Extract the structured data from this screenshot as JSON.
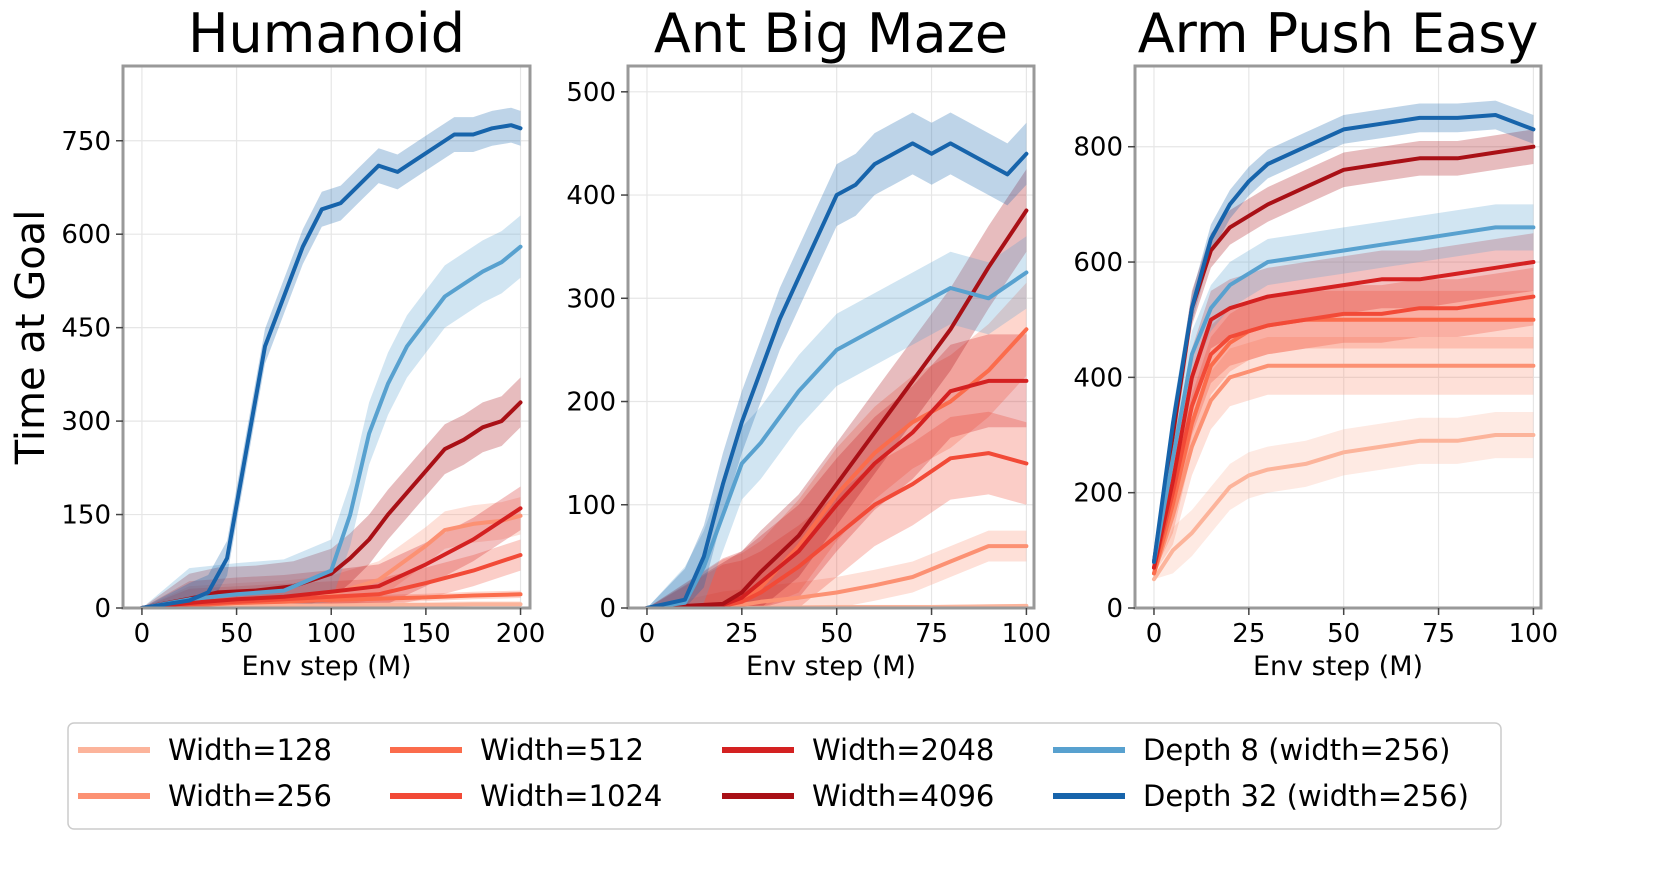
{
  "figure": {
    "ylabel": "Time at Goal",
    "legend_placement": "bottom"
  },
  "series_styles": [
    {
      "name": "Width=128",
      "color": "#fcb49b"
    },
    {
      "name": "Width=256",
      "color": "#fc9173"
    },
    {
      "name": "Width=512",
      "color": "#fb6c4c"
    },
    {
      "name": "Width=1024",
      "color": "#f24a37"
    },
    {
      "name": "Width=2048",
      "color": "#d42121"
    },
    {
      "name": "Width=4096",
      "color": "#a91016"
    },
    {
      "name": "Depth 8 (width=256)",
      "color": "#58a1cf"
    },
    {
      "name": "Depth 32 (width=256)",
      "color": "#1764ab"
    }
  ],
  "chart_data": [
    {
      "type": "line",
      "title": "Humanoid",
      "xlabel": "Env step (M)",
      "ylabel": "Time at Goal",
      "xlim": [
        -10,
        205
      ],
      "ylim": [
        0,
        870
      ],
      "xticks": [
        0,
        50,
        100,
        150,
        200
      ],
      "yticks": [
        0,
        150,
        300,
        450,
        600,
        750
      ],
      "grid": true,
      "series": [
        {
          "name": "Width=128",
          "x": [
            0,
            25,
            50,
            75,
            100,
            125,
            150,
            175,
            200
          ],
          "y": [
            0,
            2,
            3,
            4,
            4,
            5,
            5,
            6,
            6
          ],
          "band": 5
        },
        {
          "name": "Width=256",
          "x": [
            0,
            25,
            50,
            75,
            100,
            125,
            150,
            160,
            175,
            190,
            200
          ],
          "y": [
            0,
            5,
            10,
            14,
            22,
            45,
            100,
            125,
            135,
            140,
            148
          ],
          "band": 30
        },
        {
          "name": "Width=512",
          "x": [
            0,
            25,
            50,
            75,
            100,
            125,
            150,
            175,
            200
          ],
          "y": [
            0,
            4,
            8,
            10,
            13,
            15,
            17,
            20,
            22
          ],
          "band": 6
        },
        {
          "name": "Width=1024",
          "x": [
            0,
            25,
            50,
            75,
            100,
            125,
            150,
            175,
            200
          ],
          "y": [
            0,
            6,
            10,
            14,
            18,
            22,
            40,
            60,
            85
          ],
          "band": 25
        },
        {
          "name": "Width=2048",
          "x": [
            0,
            25,
            50,
            75,
            100,
            125,
            150,
            175,
            200
          ],
          "y": [
            0,
            8,
            14,
            18,
            26,
            35,
            70,
            110,
            160
          ],
          "band": 35
        },
        {
          "name": "Width=4096",
          "x": [
            0,
            25,
            40,
            60,
            80,
            100,
            110,
            120,
            130,
            140,
            150,
            160,
            170,
            180,
            190,
            200
          ],
          "y": [
            0,
            15,
            25,
            28,
            35,
            55,
            80,
            110,
            150,
            185,
            220,
            255,
            270,
            290,
            300,
            330
          ],
          "band": 40
        },
        {
          "name": "Depth 8 (width=256)",
          "x": [
            0,
            25,
            50,
            75,
            100,
            110,
            120,
            130,
            140,
            150,
            160,
            170,
            180,
            190,
            200
          ],
          "y": [
            0,
            14,
            22,
            28,
            60,
            150,
            280,
            360,
            420,
            460,
            500,
            520,
            540,
            555,
            580
          ],
          "band": 50
        },
        {
          "name": "Depth 32 (width=256)",
          "x": [
            0,
            25,
            35,
            45,
            55,
            65,
            75,
            85,
            95,
            105,
            115,
            125,
            135,
            145,
            155,
            165,
            175,
            185,
            195,
            200
          ],
          "y": [
            0,
            12,
            25,
            80,
            250,
            420,
            500,
            580,
            640,
            650,
            680,
            710,
            700,
            720,
            740,
            760,
            760,
            770,
            775,
            770
          ],
          "band": 28
        }
      ]
    },
    {
      "type": "line",
      "title": "Ant Big Maze",
      "xlabel": "Env step (M)",
      "ylabel": "",
      "xlim": [
        -5,
        102
      ],
      "ylim": [
        0,
        525
      ],
      "xticks": [
        0,
        25,
        50,
        75,
        100
      ],
      "yticks": [
        0,
        100,
        200,
        300,
        400,
        500
      ],
      "grid": true,
      "series": [
        {
          "name": "Width=128",
          "x": [
            0,
            25,
            50,
            75,
            100
          ],
          "y": [
            0,
            0,
            1,
            1,
            2
          ],
          "band": 2
        },
        {
          "name": "Width=256",
          "x": [
            0,
            20,
            25,
            30,
            40,
            50,
            60,
            70,
            80,
            90,
            100
          ],
          "y": [
            0,
            1,
            3,
            6,
            10,
            15,
            22,
            30,
            45,
            60,
            60
          ],
          "band": 15
        },
        {
          "name": "Width=512",
          "x": [
            0,
            20,
            25,
            30,
            40,
            50,
            60,
            70,
            80,
            90,
            100
          ],
          "y": [
            0,
            2,
            8,
            20,
            60,
            110,
            150,
            180,
            200,
            230,
            270
          ],
          "band": 45
        },
        {
          "name": "Width=1024",
          "x": [
            0,
            20,
            25,
            30,
            40,
            50,
            60,
            70,
            80,
            90,
            100
          ],
          "y": [
            0,
            2,
            6,
            15,
            40,
            70,
            100,
            120,
            145,
            150,
            140
          ],
          "band": 40
        },
        {
          "name": "Width=2048",
          "x": [
            0,
            20,
            25,
            30,
            40,
            50,
            60,
            70,
            80,
            90,
            100
          ],
          "y": [
            0,
            3,
            10,
            25,
            55,
            100,
            140,
            170,
            210,
            220,
            220
          ],
          "band": 45
        },
        {
          "name": "Width=4096",
          "x": [
            0,
            20,
            25,
            30,
            40,
            50,
            60,
            70,
            80,
            90,
            100
          ],
          "y": [
            0,
            4,
            15,
            35,
            70,
            120,
            170,
            220,
            270,
            330,
            385
          ],
          "band": 40
        },
        {
          "name": "Depth 8 (width=256)",
          "x": [
            0,
            10,
            15,
            20,
            25,
            30,
            40,
            50,
            60,
            70,
            80,
            90,
            100
          ],
          "y": [
            0,
            5,
            40,
            90,
            140,
            160,
            210,
            250,
            270,
            290,
            310,
            300,
            325
          ],
          "band": 35
        },
        {
          "name": "Depth 32 (width=256)",
          "x": [
            0,
            10,
            15,
            20,
            25,
            30,
            35,
            40,
            45,
            50,
            55,
            60,
            65,
            70,
            75,
            80,
            85,
            90,
            95,
            100
          ],
          "y": [
            0,
            8,
            50,
            120,
            180,
            230,
            280,
            320,
            360,
            400,
            410,
            430,
            440,
            450,
            440,
            450,
            440,
            430,
            420,
            440
          ],
          "band": 30
        }
      ]
    },
    {
      "type": "line",
      "title": "Arm Push Easy",
      "xlabel": "Env step (M)",
      "ylabel": "",
      "xlim": [
        -5,
        102
      ],
      "ylim": [
        0,
        940
      ],
      "xticks": [
        0,
        25,
        50,
        75,
        100
      ],
      "yticks": [
        0,
        200,
        400,
        600,
        800
      ],
      "grid": true,
      "series": [
        {
          "name": "Width=128",
          "x": [
            0,
            5,
            10,
            15,
            20,
            25,
            30,
            40,
            50,
            60,
            70,
            80,
            90,
            100
          ],
          "y": [
            50,
            100,
            130,
            170,
            210,
            230,
            240,
            250,
            270,
            280,
            290,
            290,
            300,
            300
          ],
          "band": 40
        },
        {
          "name": "Width=256",
          "x": [
            0,
            5,
            10,
            15,
            20,
            25,
            30,
            40,
            50,
            60,
            70,
            80,
            90,
            100
          ],
          "y": [
            60,
            160,
            280,
            360,
            400,
            410,
            420,
            420,
            420,
            420,
            420,
            420,
            420,
            420
          ],
          "band": 50
        },
        {
          "name": "Width=512",
          "x": [
            0,
            5,
            10,
            15,
            20,
            25,
            30,
            40,
            50,
            60,
            70,
            80,
            90,
            100
          ],
          "y": [
            60,
            180,
            320,
            420,
            460,
            480,
            490,
            500,
            500,
            500,
            500,
            500,
            500,
            500
          ],
          "band": 50
        },
        {
          "name": "Width=1024",
          "x": [
            0,
            5,
            10,
            15,
            20,
            25,
            30,
            40,
            50,
            60,
            70,
            80,
            90,
            100
          ],
          "y": [
            70,
            200,
            350,
            440,
            470,
            480,
            490,
            500,
            510,
            510,
            520,
            520,
            530,
            540
          ],
          "band": 50
        },
        {
          "name": "Width=2048",
          "x": [
            0,
            5,
            10,
            15,
            20,
            25,
            30,
            40,
            50,
            60,
            70,
            80,
            90,
            100
          ],
          "y": [
            70,
            220,
            400,
            500,
            520,
            530,
            540,
            550,
            560,
            570,
            570,
            580,
            590,
            600
          ],
          "band": 50
        },
        {
          "name": "Width=4096",
          "x": [
            0,
            5,
            10,
            15,
            20,
            25,
            30,
            40,
            50,
            60,
            70,
            80,
            90,
            100
          ],
          "y": [
            80,
            300,
            520,
            620,
            660,
            680,
            700,
            730,
            760,
            770,
            780,
            780,
            790,
            800
          ],
          "band": 30
        },
        {
          "name": "Depth 8 (width=256)",
          "x": [
            0,
            5,
            10,
            15,
            20,
            25,
            30,
            40,
            50,
            60,
            70,
            80,
            90,
            100
          ],
          "y": [
            80,
            260,
            440,
            520,
            560,
            580,
            600,
            610,
            620,
            630,
            640,
            650,
            660,
            660
          ],
          "band": 40
        },
        {
          "name": "Depth 32 (width=256)",
          "x": [
            0,
            5,
            10,
            15,
            20,
            25,
            30,
            40,
            50,
            60,
            70,
            80,
            90,
            100
          ],
          "y": [
            80,
            320,
            520,
            640,
            700,
            740,
            770,
            800,
            830,
            840,
            850,
            850,
            855,
            830
          ],
          "band": 25
        }
      ]
    }
  ]
}
